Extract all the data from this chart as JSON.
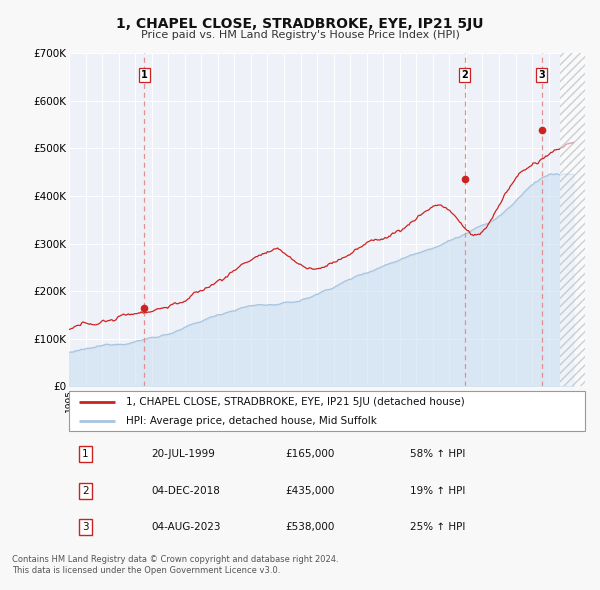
{
  "title": "1, CHAPEL CLOSE, STRADBROKE, EYE, IP21 5JU",
  "subtitle": "Price paid vs. HM Land Registry's House Price Index (HPI)",
  "ylim": [
    0,
    700000
  ],
  "yticks": [
    0,
    100000,
    200000,
    300000,
    400000,
    500000,
    600000,
    700000
  ],
  "ytick_labels": [
    "£0",
    "£100K",
    "£200K",
    "£300K",
    "£400K",
    "£500K",
    "£600K",
    "£700K"
  ],
  "hpi_color": "#a8c4e0",
  "hpi_fill_color": "#c8ddf0",
  "price_color": "#cc2222",
  "sale_marker_color": "#cc2222",
  "vline_color": "#e09090",
  "plot_bg": "#eef2f8",
  "fig_bg": "#f8f8f8",
  "grid_color": "#d8dce8",
  "legend_label_price": "1, CHAPEL CLOSE, STRADBROKE, EYE, IP21 5JU (detached house)",
  "legend_label_hpi": "HPI: Average price, detached house, Mid Suffolk",
  "sales": [
    {
      "num": 1,
      "date_str": "20-JUL-1999",
      "price": 165000,
      "pct": "58%",
      "x": 1999.54
    },
    {
      "num": 2,
      "date_str": "04-DEC-2018",
      "price": 435000,
      "pct": "19%",
      "x": 2018.92
    },
    {
      "num": 3,
      "date_str": "04-AUG-2023",
      "price": 538000,
      "pct": "25%",
      "x": 2023.59
    }
  ],
  "footer1": "Contains HM Land Registry data © Crown copyright and database right 2024.",
  "footer2": "This data is licensed under the Open Government Licence v3.0.",
  "xlim": [
    1995.0,
    2026.2
  ],
  "hatch_start": 2024.7
}
